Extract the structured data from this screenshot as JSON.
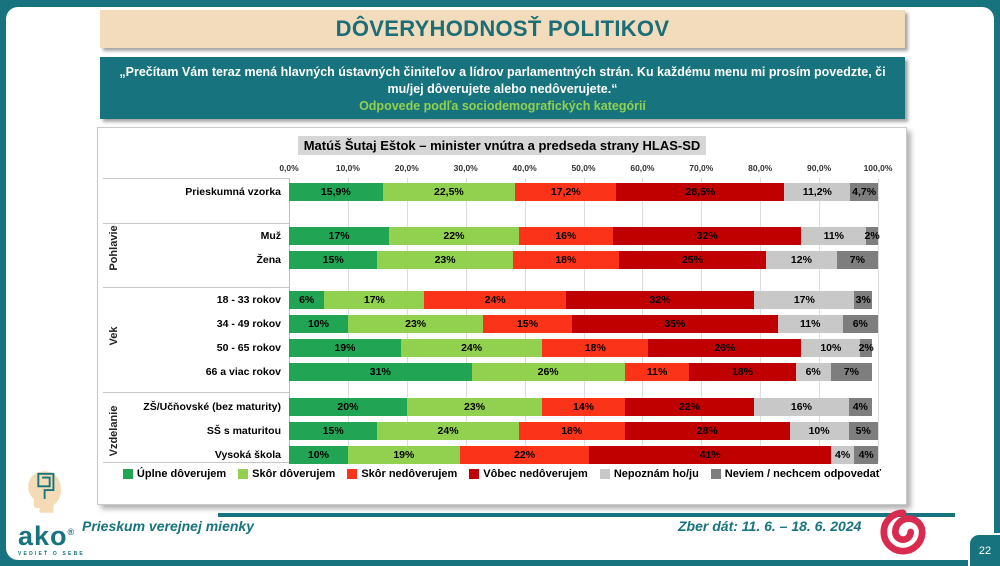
{
  "slide": {
    "title": "DÔVERYHODNOSŤ POLITIKOV",
    "intro_quote": "„Prečítam Vám teraz mená hlavných ústavných činiteľov a lídrov parlamentných strán. Ku každému menu mi prosím povedzte, či mu/jej dôverujete alebo nedôverujete.“",
    "intro_subtitle": "Odpovede podľa sociodemografických kategórií",
    "page_number": "22"
  },
  "footer": {
    "survey_type": "Prieskum verejnej mienky",
    "collection_dates": "Zber dát: 11. 6. – 18. 6. 2024",
    "logo_brand": "ako",
    "logo_registered": "®",
    "logo_tagline": "VEDIEŤ O SEBE"
  },
  "colors": {
    "teal": "#17737D",
    "cream": "#F2DCBC",
    "green_text": "#92D050",
    "spiral_red": "#D92B50"
  },
  "chart_data": {
    "type": "bar",
    "stacked": true,
    "orientation": "horizontal",
    "title": "Matúš Šutaj Eštok – minister vnútra a predseda strany HLAS-SD",
    "xlim": [
      0,
      100
    ],
    "x_ticks": [
      "0,0%",
      "10,0%",
      "20,0%",
      "30,0%",
      "40,0%",
      "50,0%",
      "60,0%",
      "70,0%",
      "80,0%",
      "90,0%",
      "100,0%"
    ],
    "grid": true,
    "legend_position": "bottom",
    "series": [
      {
        "name": "Úplne dôverujem",
        "color": "#21A453"
      },
      {
        "name": "Skôr dôverujem",
        "color": "#92D050"
      },
      {
        "name": "Skôr nedôverujem",
        "color": "#FB3419"
      },
      {
        "name": "Vôbec nedôverujem",
        "color": "#C00000"
      },
      {
        "name": "Nepoznám ho/ju",
        "color": "#C8C8C8"
      },
      {
        "name": "Neviem / nechcem odpovedať",
        "color": "#7E7E7E"
      }
    ],
    "groups": [
      {
        "label": "",
        "rows": [
          {
            "category": "Prieskumná vzorka",
            "values": [
              15.9,
              22.5,
              17.2,
              28.5,
              11.2,
              4.7
            ],
            "labels": [
              "15,9%",
              "22,5%",
              "17,2%",
              "28,5%",
              "11,2%",
              "4,7%"
            ]
          }
        ]
      },
      {
        "label": "Pohlavie",
        "rows": [
          {
            "category": "Muž",
            "values": [
              17,
              22,
              16,
              32,
              11,
              2
            ],
            "labels": [
              "17%",
              "22%",
              "16%",
              "32%",
              "11%",
              "2%"
            ]
          },
          {
            "category": "Žena",
            "values": [
              15,
              23,
              18,
              25,
              12,
              7
            ],
            "labels": [
              "15%",
              "23%",
              "18%",
              "25%",
              "12%",
              "7%"
            ]
          }
        ]
      },
      {
        "label": "Vek",
        "rows": [
          {
            "category": "18 - 33 rokov",
            "values": [
              6,
              17,
              24,
              32,
              17,
              3
            ],
            "labels": [
              "6%",
              "17%",
              "24%",
              "32%",
              "17%",
              "3%"
            ]
          },
          {
            "category": "34 - 49 rokov",
            "values": [
              10,
              23,
              15,
              35,
              11,
              6
            ],
            "labels": [
              "10%",
              "23%",
              "15%",
              "35%",
              "11%",
              "6%"
            ]
          },
          {
            "category": "50 - 65 rokov",
            "values": [
              19,
              24,
              18,
              26,
              10,
              2
            ],
            "labels": [
              "19%",
              "24%",
              "18%",
              "26%",
              "10%",
              "2%"
            ]
          },
          {
            "category": "66 a viac rokov",
            "values": [
              31,
              26,
              11,
              18,
              6,
              7
            ],
            "labels": [
              "31%",
              "26%",
              "11%",
              "18%",
              "6%",
              "7%"
            ]
          }
        ]
      },
      {
        "label": "Vzdelanie",
        "rows": [
          {
            "category": "ZŠ/Učňovské (bez maturity)",
            "values": [
              20,
              23,
              14,
              22,
              16,
              4
            ],
            "labels": [
              "20%",
              "23%",
              "14%",
              "22%",
              "16%",
              "4%"
            ]
          },
          {
            "category": "SŠ s maturitou",
            "values": [
              15,
              24,
              18,
              28,
              10,
              5
            ],
            "labels": [
              "15%",
              "24%",
              "18%",
              "28%",
              "10%",
              "5%"
            ]
          },
          {
            "category": "Vysoká škola",
            "values": [
              10,
              19,
              22,
              41,
              4,
              4
            ],
            "labels": [
              "10%",
              "19%",
              "22%",
              "41%",
              "4%",
              "4%"
            ]
          }
        ]
      }
    ]
  }
}
